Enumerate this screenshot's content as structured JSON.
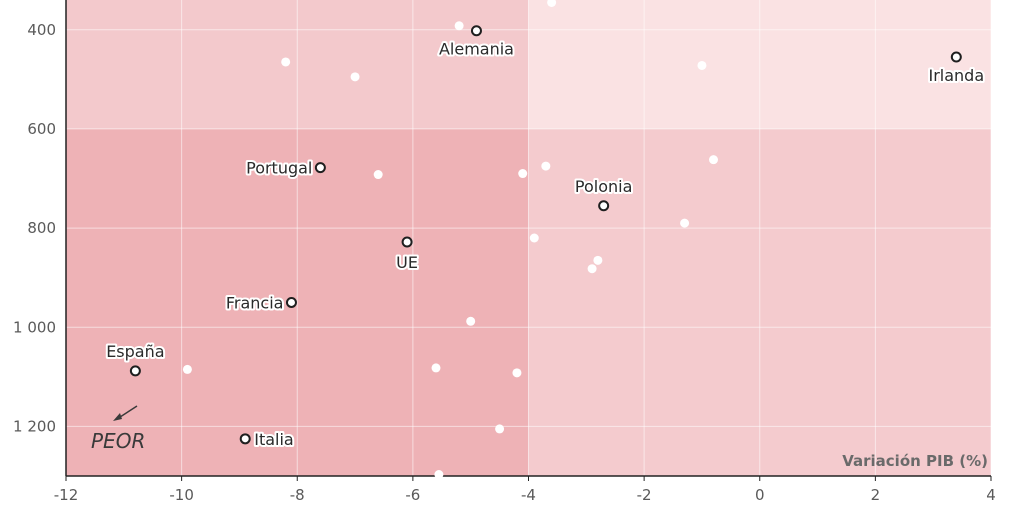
{
  "chart_data": {
    "type": "scatter",
    "x_axis_title": "Variación PIB (%)",
    "xlim": [
      -12,
      4
    ],
    "ylim": [
      1300,
      340
    ],
    "x_ticks": [
      -12,
      -10,
      -8,
      -6,
      -4,
      -2,
      0,
      2,
      4
    ],
    "y_ticks": [
      400,
      600,
      800,
      1000,
      1200
    ],
    "x_tick_labels": [
      "-12",
      "-10",
      "-8",
      "-6",
      "-4",
      "-2",
      "0",
      "2",
      "4"
    ],
    "y_tick_labels": [
      "400",
      "600",
      "800",
      "1 000",
      "1 200"
    ],
    "grid": true,
    "quadrant_split": {
      "x": -4,
      "y": 600
    },
    "quadrant_colors": {
      "top_left": "#f3c9cc",
      "top_right": "#fae2e3",
      "bottom_left": "#eeb2b6",
      "bottom_right": "#f4cbce"
    },
    "annotation": "PEOR",
    "labeled_points": [
      {
        "label": "Alemania",
        "x": -4.9,
        "y": 402
      },
      {
        "label": "Irlanda",
        "x": 3.4,
        "y": 455
      },
      {
        "label": "Portugal",
        "x": -7.6,
        "y": 678
      },
      {
        "label": "Polonia",
        "x": -2.7,
        "y": 755
      },
      {
        "label": "UE",
        "x": -6.1,
        "y": 828
      },
      {
        "label": "Francia",
        "x": -8.1,
        "y": 950
      },
      {
        "label": "España",
        "x": -10.8,
        "y": 1088
      },
      {
        "label": "Italia",
        "x": -8.9,
        "y": 1225
      }
    ],
    "other_points": [
      {
        "x": -5.2,
        "y": 392
      },
      {
        "x": -3.6,
        "y": 345
      },
      {
        "x": -8.2,
        "y": 465
      },
      {
        "x": -7.0,
        "y": 495
      },
      {
        "x": -1.0,
        "y": 472
      },
      {
        "x": -0.8,
        "y": 662
      },
      {
        "x": -3.7,
        "y": 675
      },
      {
        "x": -4.1,
        "y": 690
      },
      {
        "x": -6.6,
        "y": 692
      },
      {
        "x": -1.3,
        "y": 790
      },
      {
        "x": -3.9,
        "y": 820
      },
      {
        "x": -2.8,
        "y": 865
      },
      {
        "x": -2.9,
        "y": 882
      },
      {
        "x": -5.0,
        "y": 988
      },
      {
        "x": -9.9,
        "y": 1085
      },
      {
        "x": -5.6,
        "y": 1082
      },
      {
        "x": -4.2,
        "y": 1092
      },
      {
        "x": -4.5,
        "y": 1205
      },
      {
        "x": -5.55,
        "y": 1297
      }
    ],
    "colors": {
      "grid": "#ffffff",
      "axis": "#222222",
      "labeled_point_stroke": "#1f1f1f",
      "other_point": "#ffffff"
    }
  }
}
